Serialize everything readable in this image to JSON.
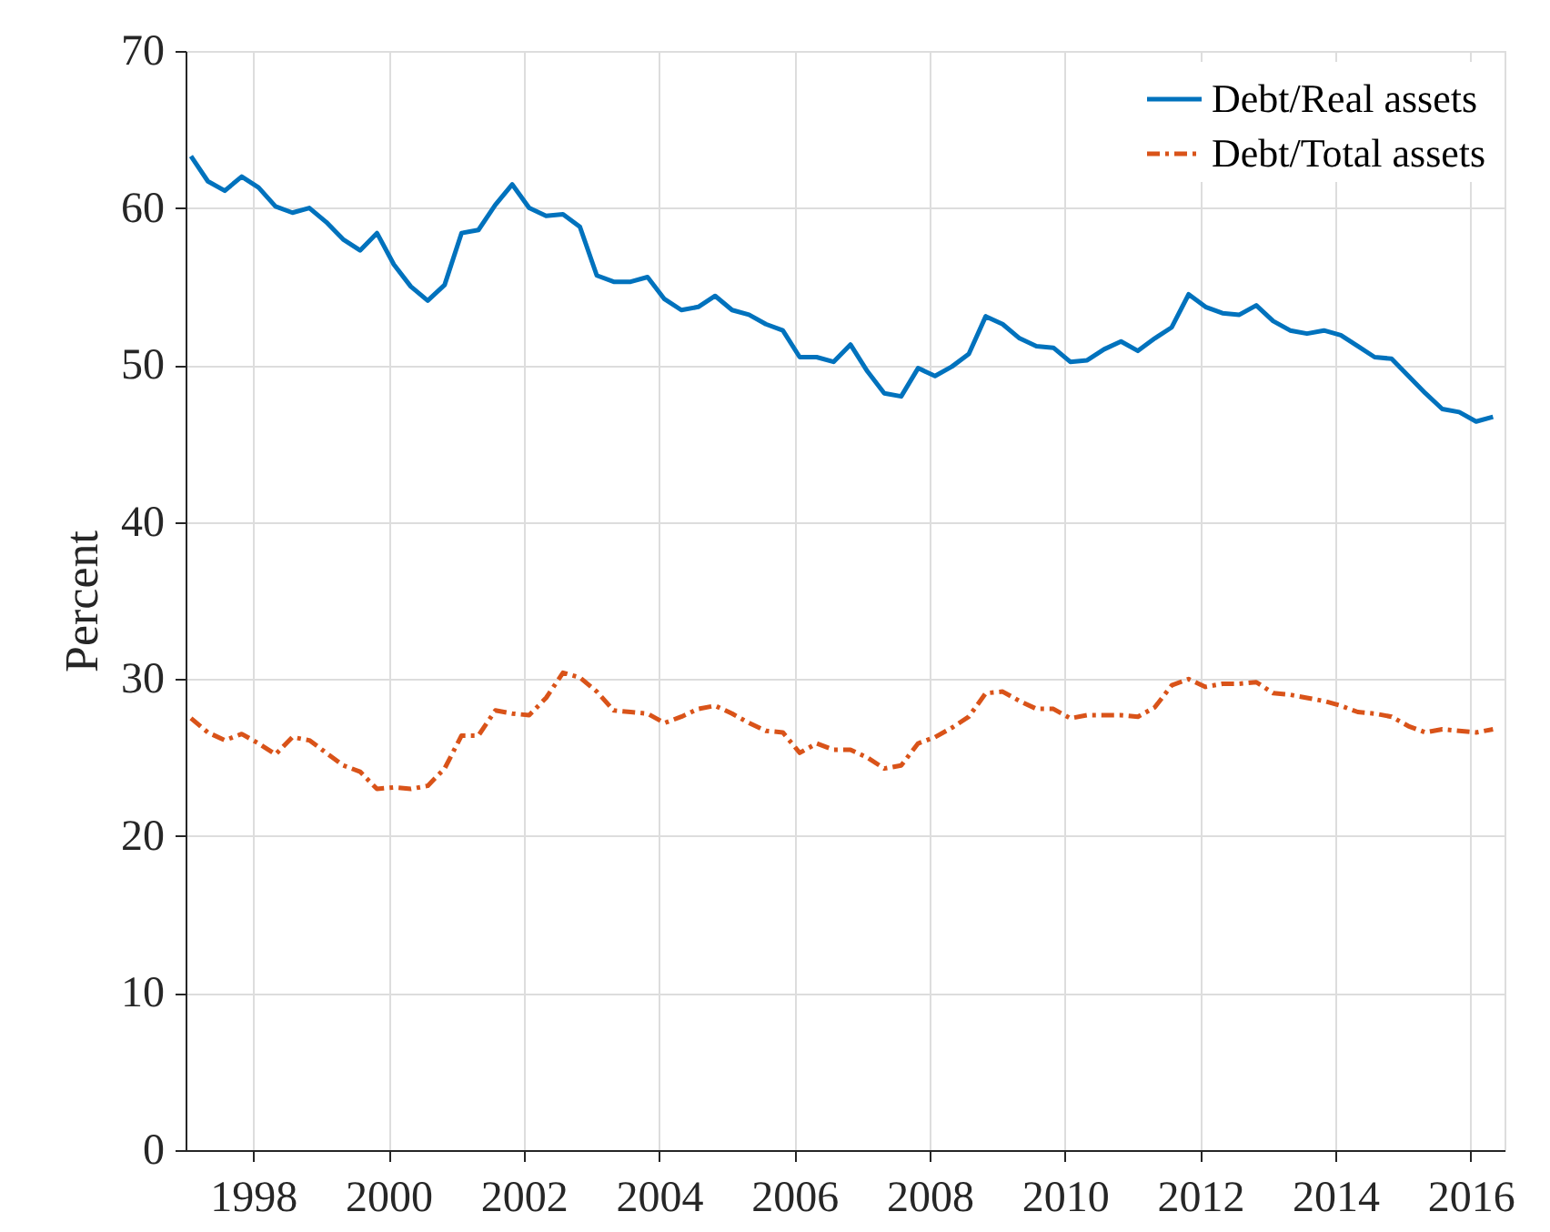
{
  "chart_data": {
    "type": "line",
    "ylabel": "Percent",
    "x": [
      1997.08,
      1997.33,
      1997.58,
      1997.83,
      1998.08,
      1998.33,
      1998.58,
      1998.83,
      1999.08,
      1999.33,
      1999.58,
      1999.83,
      2000.08,
      2000.33,
      2000.58,
      2000.83,
      2001.08,
      2001.33,
      2001.58,
      2001.83,
      2002.08,
      2002.33,
      2002.58,
      2002.83,
      2003.08,
      2003.33,
      2003.58,
      2003.83,
      2004.08,
      2004.33,
      2004.58,
      2004.83,
      2005.08,
      2005.33,
      2005.58,
      2005.83,
      2006.08,
      2006.33,
      2006.58,
      2006.83,
      2007.08,
      2007.33,
      2007.58,
      2007.83,
      2008.08,
      2008.33,
      2008.58,
      2008.83,
      2009.08,
      2009.33,
      2009.58,
      2009.83,
      2010.08,
      2010.33,
      2010.58,
      2010.83,
      2011.08,
      2011.33,
      2011.58,
      2011.83,
      2012.08,
      2012.33,
      2012.58,
      2012.83,
      2013.08,
      2013.33,
      2013.58,
      2013.83,
      2014.08,
      2014.33,
      2014.58,
      2014.83,
      2015.08,
      2015.33,
      2015.58,
      2015.83,
      2016.08,
      2016.33
    ],
    "series": [
      {
        "name": "Debt/Real assets",
        "color": "#0072bd",
        "line_style": "solid",
        "values": [
          63.3,
          61.7,
          61.1,
          62.0,
          61.3,
          60.1,
          59.7,
          60.0,
          59.1,
          58.0,
          57.3,
          58.4,
          56.4,
          55.0,
          54.1,
          55.1,
          58.4,
          58.6,
          60.2,
          61.5,
          60.0,
          59.5,
          59.6,
          58.8,
          55.7,
          55.3,
          55.3,
          55.6,
          54.2,
          53.5,
          53.7,
          54.4,
          53.5,
          53.2,
          52.6,
          52.2,
          50.5,
          50.5,
          50.2,
          51.3,
          49.6,
          48.2,
          48.0,
          49.8,
          49.3,
          49.9,
          50.7,
          53.1,
          52.6,
          51.7,
          51.2,
          51.1,
          50.2,
          50.3,
          51.0,
          51.5,
          50.9,
          51.7,
          52.4,
          54.5,
          53.7,
          53.3,
          53.2,
          53.8,
          52.8,
          52.2,
          52.0,
          52.2,
          51.9,
          51.2,
          50.5,
          50.4,
          49.3,
          48.2,
          47.2,
          47.0,
          46.4,
          46.7
        ]
      },
      {
        "name": "Debt/Total assets",
        "color": "#d95319",
        "line_style": "dashed",
        "values": [
          27.5,
          26.6,
          26.1,
          26.5,
          25.9,
          25.2,
          26.3,
          26.1,
          25.3,
          24.5,
          24.1,
          23.0,
          23.1,
          23.0,
          23.2,
          24.3,
          26.4,
          26.4,
          28.0,
          27.8,
          27.7,
          28.8,
          30.4,
          30.1,
          29.2,
          28.0,
          27.9,
          27.8,
          27.2,
          27.6,
          28.1,
          28.3,
          27.8,
          27.2,
          26.7,
          26.6,
          25.3,
          25.9,
          25.5,
          25.5,
          25.0,
          24.3,
          24.5,
          25.9,
          26.3,
          26.9,
          27.6,
          29.1,
          29.2,
          28.6,
          28.1,
          28.1,
          27.5,
          27.7,
          27.7,
          27.7,
          27.6,
          28.2,
          29.6,
          30.0,
          29.5,
          29.7,
          29.7,
          29.8,
          29.1,
          29.0,
          28.8,
          28.6,
          28.3,
          27.9,
          27.8,
          27.6,
          27.0,
          26.6,
          26.8,
          26.7,
          26.6,
          26.8
        ]
      }
    ],
    "xlim": [
      1997,
      2016.5
    ],
    "xticks": [
      1998,
      2000,
      2002,
      2004,
      2006,
      2008,
      2010,
      2012,
      2014,
      2016
    ],
    "ylim": [
      0,
      70
    ],
    "yticks": [
      0,
      10,
      20,
      30,
      40,
      50,
      60,
      70
    ],
    "grid": true,
    "legend": "top right"
  }
}
